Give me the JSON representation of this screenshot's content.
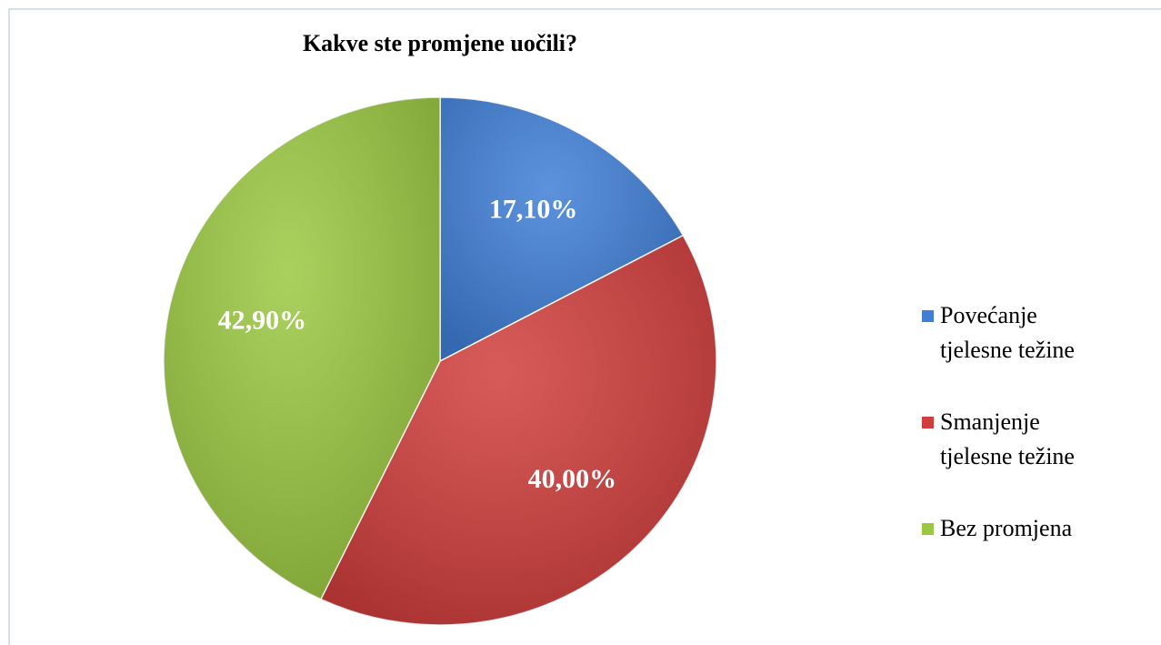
{
  "chart_data": {
    "type": "pie",
    "title": "Kakve ste promjene uočili?",
    "categories": [
      "Povećanje tjelesne težine",
      "Smanjenje tjelesne težine",
      "Bez promjena"
    ],
    "values": [
      17.1,
      40,
      42.9
    ],
    "value_labels": [
      "17,10%",
      "40,00%",
      "42,90%"
    ],
    "colors": [
      "#3f7fd6",
      "#d03e3c",
      "#9bc842"
    ],
    "legend": "right"
  }
}
